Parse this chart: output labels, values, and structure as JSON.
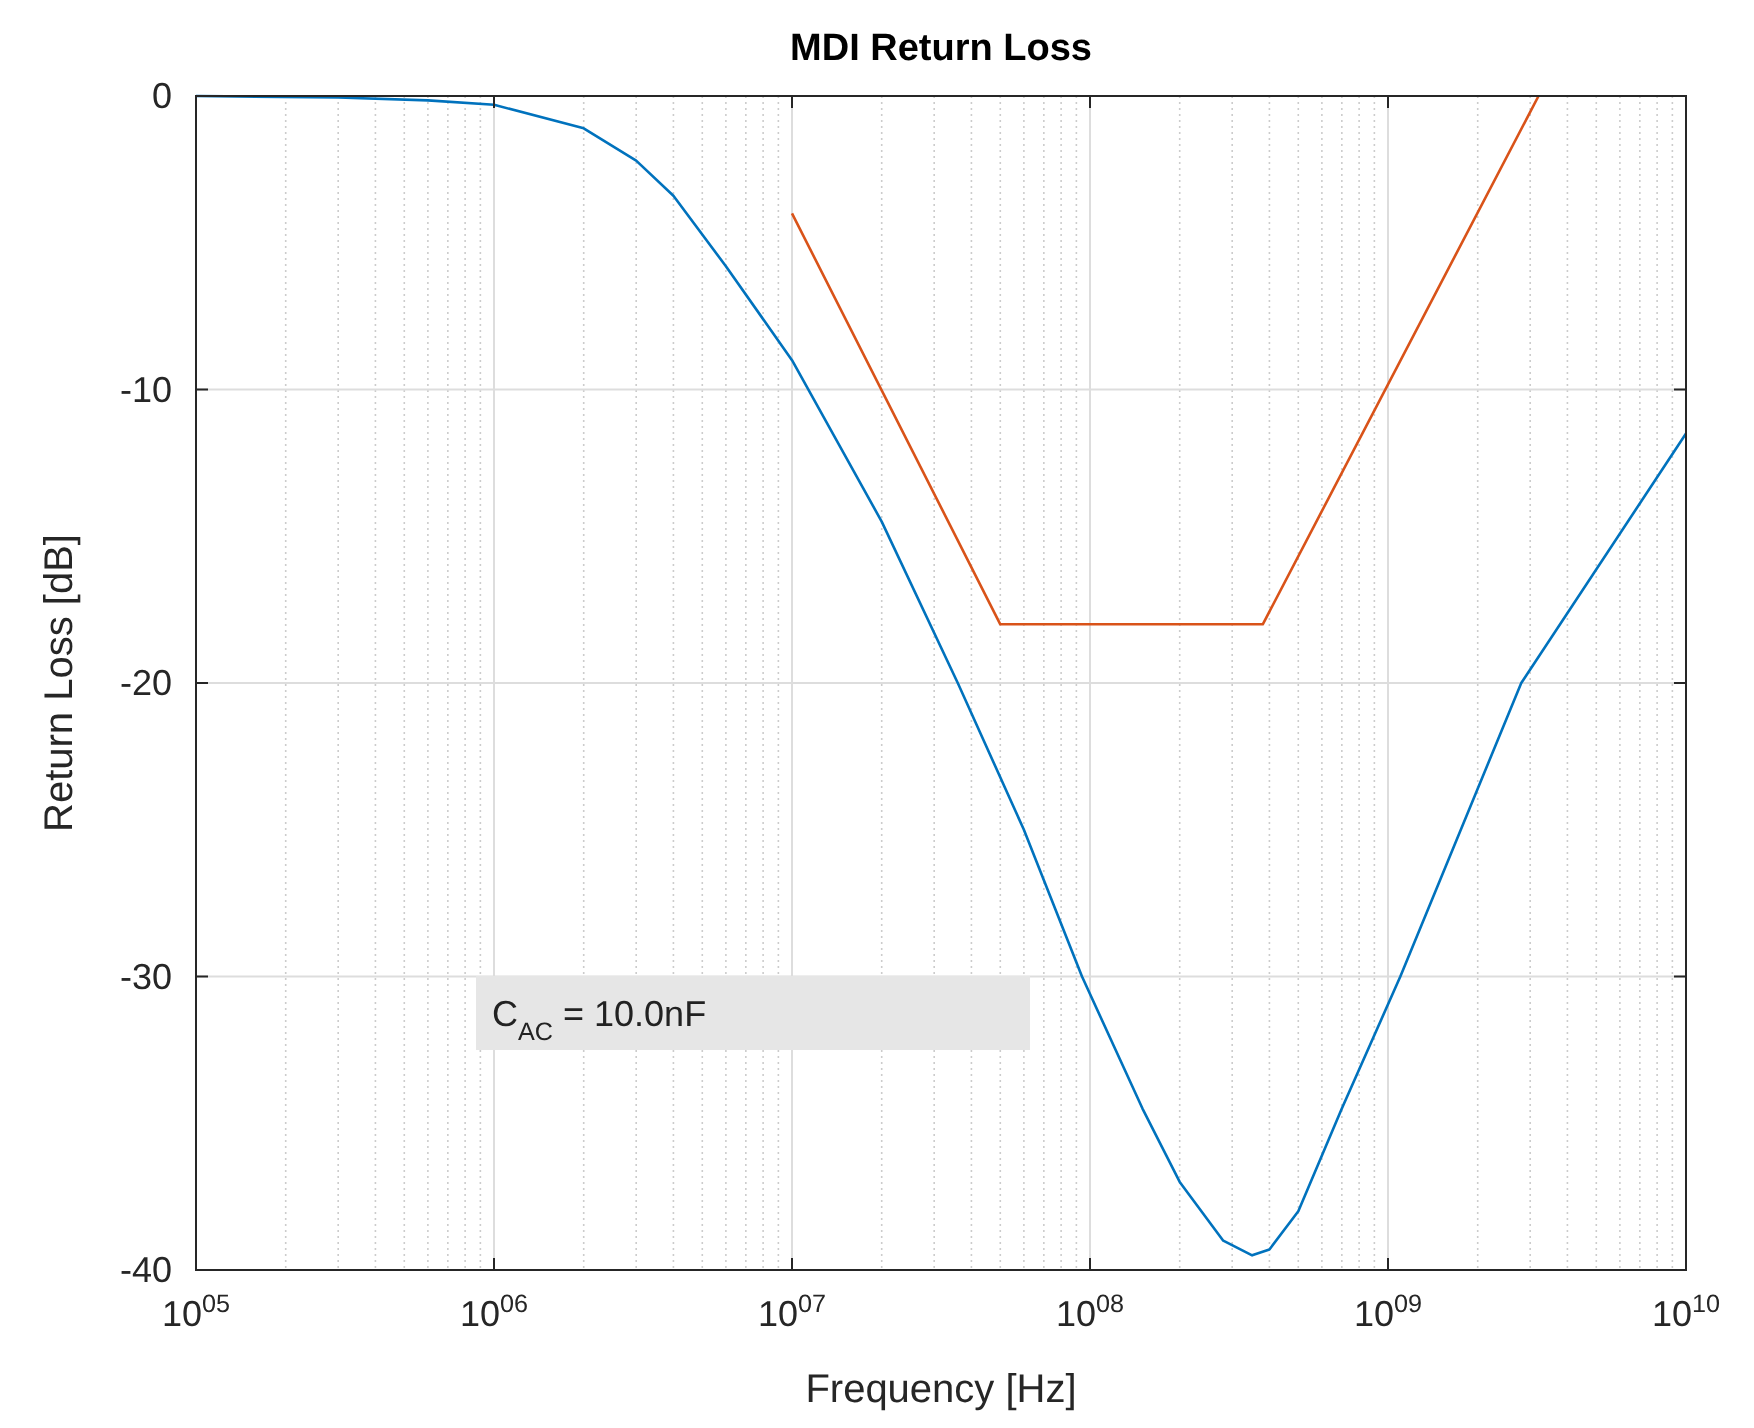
{
  "chart_data": {
    "type": "line",
    "title": "MDI Return Loss",
    "xlabel": "Frequency [Hz]",
    "ylabel": "Return Loss [dB]",
    "log": "x",
    "grid": true,
    "xlim": [
      100000,
      10000000000
    ],
    "ylim": [
      -40,
      0
    ],
    "xticks": [
      {
        "value": 100000,
        "label": "10$^{05}$"
      },
      {
        "value": 1000000,
        "label": "10$^{06}$"
      },
      {
        "value": 10000000,
        "label": "10$^{07}$"
      },
      {
        "value": 100000000,
        "label": "10$^{08}$"
      },
      {
        "value": 1000000000,
        "label": "10$^{09}$"
      },
      {
        "value": 10000000000,
        "label": "10$^{10}$"
      }
    ],
    "yticks": [
      -40,
      -30,
      -20,
      -10,
      0
    ],
    "annotations": [
      "C$_{AC}$ = 10.0nF"
    ],
    "series": [
      {
        "color": "#0072bd",
        "x": [
          100000,
          300000,
          600000,
          1000000,
          2000000,
          3000000,
          4000000,
          6000000,
          10000000,
          20000000,
          36000000,
          60000000,
          94000000,
          150000000,
          200000000,
          280000000,
          350000000,
          400000000,
          500000000,
          700000000,
          1100000000,
          2800000000,
          10000000000
        ],
        "values": [
          0,
          -0.05,
          -0.15,
          -0.3,
          -1.1,
          -2.2,
          -3.4,
          -5.8,
          -9,
          -14.5,
          -20,
          -25,
          -30,
          -34.5,
          -37,
          -39,
          -39.5,
          -39.3,
          -38,
          -34.5,
          -30,
          -20,
          -11.5
        ]
      },
      {
        "color": "#d95319",
        "x": [
          10000000,
          50000000,
          380000000,
          3200000000
        ],
        "values": [
          -4,
          -18,
          -18,
          0
        ]
      }
    ]
  }
}
